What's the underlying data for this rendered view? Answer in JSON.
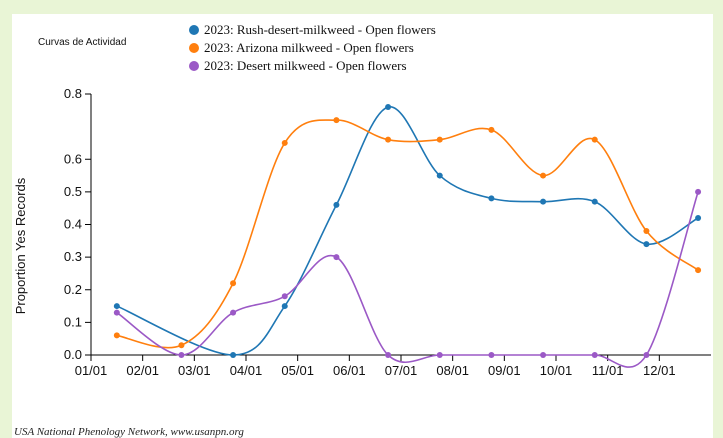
{
  "chart_data": {
    "type": "line",
    "title": "Curvas de Actividad",
    "ylabel": "Proportion Yes Records",
    "xlabel": "",
    "credit": "USA National Phenology Network, www.usanpn.org",
    "ylim": [
      0,
      0.8
    ],
    "yticks": [
      "0.0",
      "0.1",
      "0.2",
      "0.3",
      "0.4",
      "0.5",
      "0.6",
      "0.8"
    ],
    "xticks": [
      "01/01",
      "02/01",
      "03/01",
      "04/01",
      "05/01",
      "06/01",
      "07/01",
      "08/01",
      "09/01",
      "10/01",
      "11/01",
      "12/01"
    ],
    "x_points": [
      0.5,
      1.75,
      2.75,
      3.75,
      4.75,
      5.75,
      6.75,
      7.75,
      8.75,
      9.75,
      10.75,
      11.75
    ],
    "series": [
      {
        "name": "2023: Rush-desert-milkweed - Open flowers",
        "color": "#1f77b4",
        "values": [
          0.15,
          null,
          0.0,
          0.15,
          0.46,
          0.76,
          0.55,
          0.48,
          0.47,
          0.47,
          0.34,
          0.42
        ]
      },
      {
        "name": "2023: Arizona milkweed - Open flowers",
        "color": "#ff7f0e",
        "values": [
          0.06,
          0.03,
          0.22,
          0.65,
          0.72,
          0.66,
          0.66,
          0.69,
          0.55,
          0.66,
          0.38,
          0.26
        ]
      },
      {
        "name": "2023: Desert milkweed - Open flowers",
        "color": "#9b59c6",
        "values": [
          0.13,
          0.0,
          0.13,
          0.18,
          0.3,
          0.0,
          0.0,
          0.0,
          0.0,
          0.0,
          0.0,
          0.5
        ]
      }
    ]
  }
}
